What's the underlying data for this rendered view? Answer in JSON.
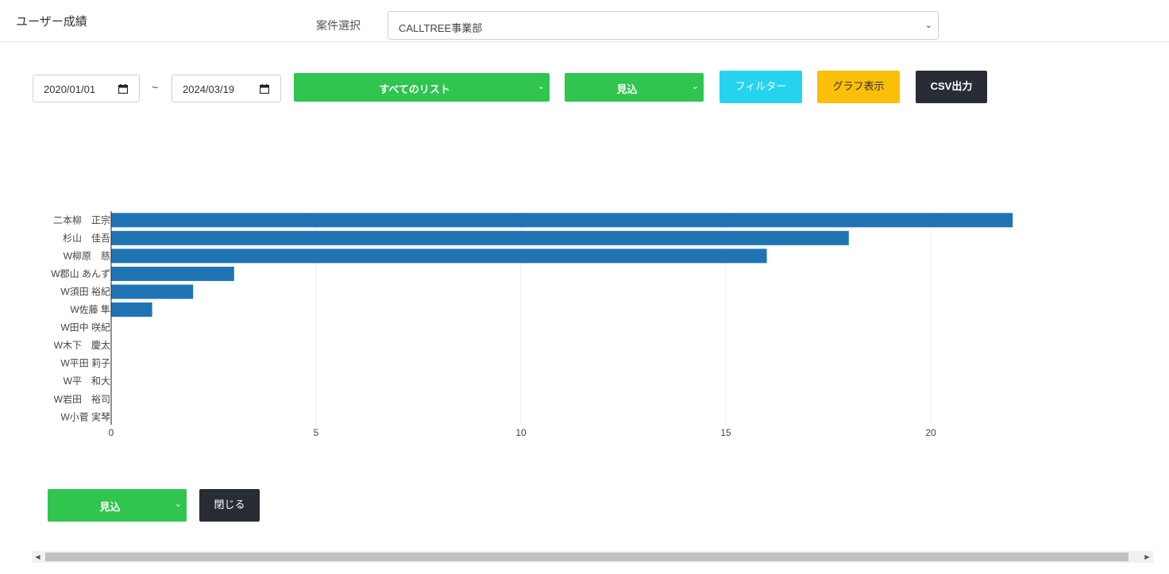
{
  "header": {
    "title": "ユーザー成績",
    "project_label": "案件選択",
    "project_value": "CALLTREE事業部"
  },
  "filters": {
    "date_from": "2020/01/01",
    "date_to": "2024/03/19",
    "date_separator": "~",
    "list_select": "すべてのリスト",
    "status_select": "見込",
    "filter_button": "フィルター",
    "graph_button": "グラフ表示",
    "csv_button": "CSV出力"
  },
  "colors": {
    "green": "#2fc54f",
    "cyan": "#25d3ef",
    "yellow": "#fbbf08",
    "dark": "#2a2c35",
    "bar": "#2074b4"
  },
  "chart_data": {
    "type": "bar",
    "orientation": "horizontal",
    "categories": [
      "二本柳　正宗",
      "杉山　佳吾",
      "W柳原　慈",
      "W郡山 あんず",
      "W須田 裕紀",
      "W佐藤 隼",
      "W田中 咲紀",
      "W木下　慶太",
      "W平田 莉子",
      "W平　和大",
      "W岩田　裕司",
      "W小菅 実琴"
    ],
    "values": [
      22,
      18,
      16,
      3,
      2,
      1,
      0,
      0,
      0,
      0,
      0,
      0
    ],
    "x_ticks": [
      0,
      5,
      10,
      15,
      20
    ],
    "xlim": [
      0,
      23
    ],
    "grid": true
  },
  "footer": {
    "status_select": "見込",
    "close_button": "閉じる"
  }
}
